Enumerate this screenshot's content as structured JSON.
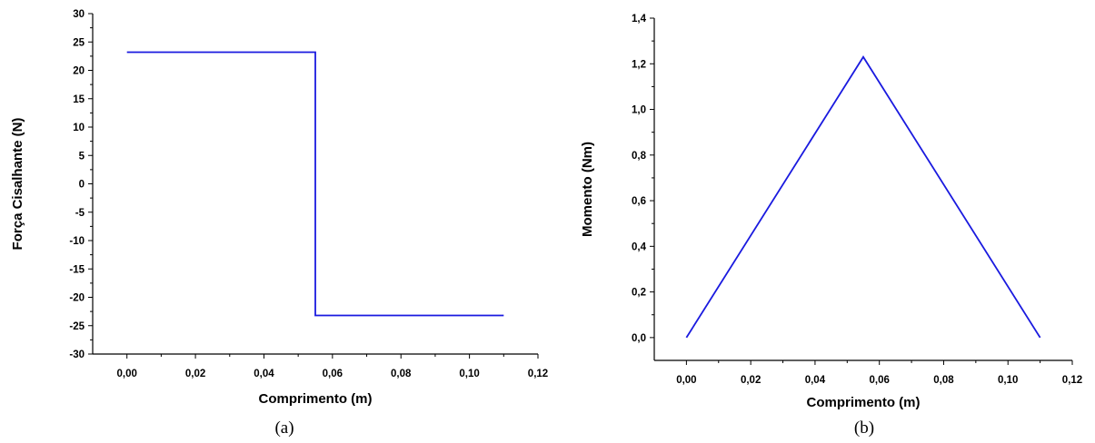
{
  "chart_data": [
    {
      "panel_label": "(a)",
      "type": "line",
      "xlabel": "Comprimento (m)",
      "ylabel": "Força Cisalhante (N)",
      "xlim": [
        -0.01,
        0.12
      ],
      "ylim": [
        -30,
        30
      ],
      "xticks": [
        0,
        0.02,
        0.04,
        0.06,
        0.08,
        0.1,
        0.12
      ],
      "xtick_labels": [
        "0,00",
        "0,02",
        "0,04",
        "0,06",
        "0,08",
        "0,10",
        "0,12"
      ],
      "yticks": [
        -30,
        -25,
        -20,
        -15,
        -10,
        -5,
        0,
        5,
        10,
        15,
        20,
        25,
        30
      ],
      "ytick_labels": [
        "-30",
        "-25",
        "-20",
        "-15",
        "-10",
        "-5",
        "0",
        "5",
        "10",
        "15",
        "20",
        "25",
        "30"
      ],
      "grid": false,
      "series": [
        {
          "color": "#1a1adf",
          "x": [
            0,
            0.055,
            0.055,
            0.11
          ],
          "y": [
            23.2,
            23.2,
            -23.2,
            -23.2
          ]
        }
      ]
    },
    {
      "panel_label": "(b)",
      "type": "line",
      "xlabel": "Comprimento (m)",
      "ylabel": "Momento (Nm)",
      "xlim": [
        -0.01,
        0.12
      ],
      "ylim": [
        -0.1,
        1.4
      ],
      "xticks": [
        0,
        0.02,
        0.04,
        0.06,
        0.08,
        0.1,
        0.12
      ],
      "xtick_labels": [
        "0,00",
        "0,02",
        "0,04",
        "0,06",
        "0,08",
        "0,10",
        "0,12"
      ],
      "yticks": [
        0,
        0.2,
        0.4,
        0.6,
        0.8,
        1.0,
        1.2,
        1.4
      ],
      "ytick_labels": [
        "0,0",
        "0,2",
        "0,4",
        "0,6",
        "0,8",
        "1,0",
        "1,2",
        "1,4"
      ],
      "grid": false,
      "series": [
        {
          "color": "#1a1adf",
          "x": [
            0,
            0.055,
            0.11
          ],
          "y": [
            0,
            1.23,
            0
          ]
        }
      ]
    }
  ]
}
